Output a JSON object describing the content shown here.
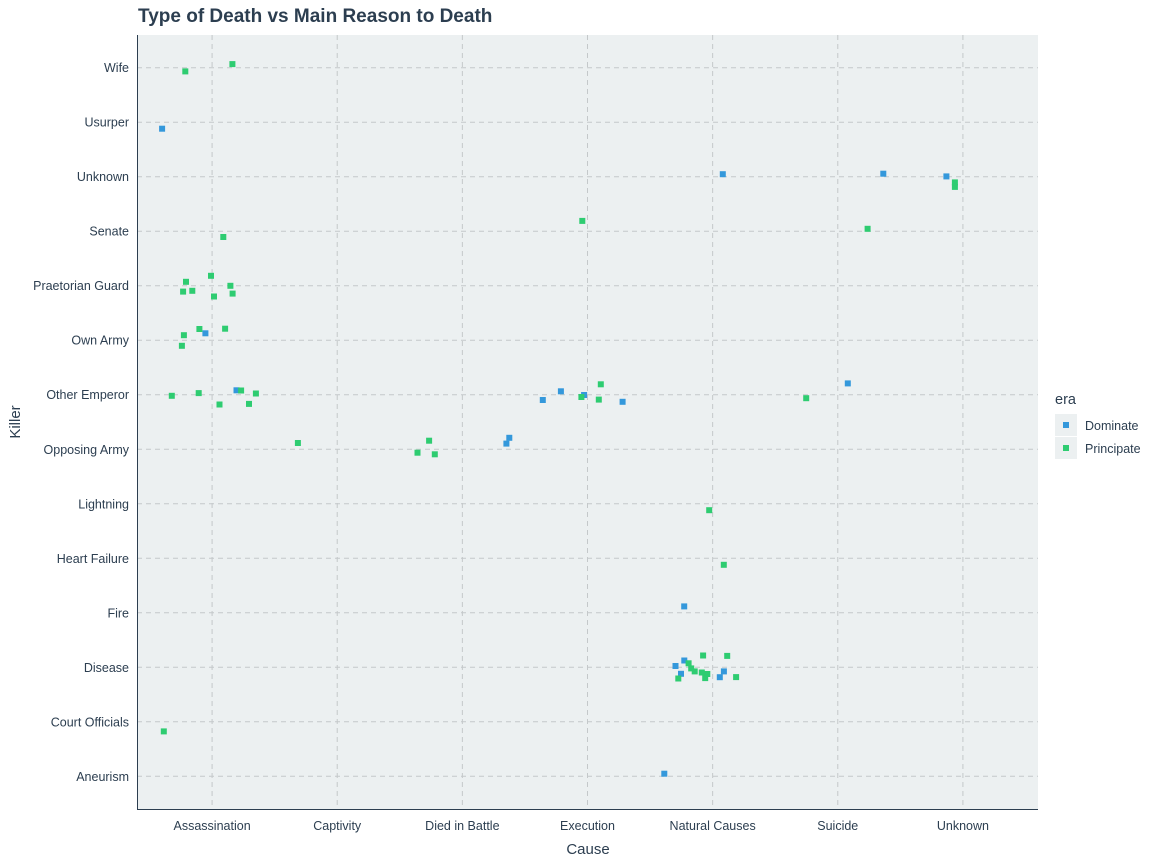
{
  "chart_data": {
    "type": "scatter",
    "title": "Type of Death vs Main Reason to Death",
    "xlabel": "Cause",
    "ylabel": "Killer",
    "x_categories": [
      "Assassination",
      "Captivity",
      "Died in Battle",
      "Execution",
      "Natural Causes",
      "Suicide",
      "Unknown"
    ],
    "y_categories": [
      "Aneurism",
      "Court Officials",
      "Disease",
      "Fire",
      "Heart Failure",
      "Lightning",
      "Opposing Army",
      "Other Emperor",
      "Own Army",
      "Praetorian Guard",
      "Senate",
      "Unknown",
      "Usurper",
      "Wife"
    ],
    "grid": true,
    "jitter": true,
    "legend": {
      "title": "era",
      "position": "right",
      "entries": [
        {
          "name": "Dominate",
          "color": "#3498db"
        },
        {
          "name": "Principate",
          "color": "#2ecc71"
        }
      ]
    },
    "series": [
      {
        "name": "Dominate",
        "color": "#3498db",
        "points": [
          {
            "x": "Assassination",
            "y": "Usurper"
          },
          {
            "x": "Assassination",
            "y": "Own Army"
          },
          {
            "x": "Assassination",
            "y": "Other Emperor"
          },
          {
            "x": "Died in Battle",
            "y": "Opposing Army"
          },
          {
            "x": "Died in Battle",
            "y": "Opposing Army"
          },
          {
            "x": "Execution",
            "y": "Other Emperor"
          },
          {
            "x": "Execution",
            "y": "Other Emperor"
          },
          {
            "x": "Execution",
            "y": "Other Emperor"
          },
          {
            "x": "Execution",
            "y": "Other Emperor"
          },
          {
            "x": "Natural Causes",
            "y": "Unknown"
          },
          {
            "x": "Natural Causes",
            "y": "Fire"
          },
          {
            "x": "Natural Causes",
            "y": "Disease"
          },
          {
            "x": "Natural Causes",
            "y": "Disease"
          },
          {
            "x": "Natural Causes",
            "y": "Disease"
          },
          {
            "x": "Natural Causes",
            "y": "Disease"
          },
          {
            "x": "Natural Causes",
            "y": "Disease"
          },
          {
            "x": "Natural Causes",
            "y": "Aneurism"
          },
          {
            "x": "Suicide",
            "y": "Unknown"
          },
          {
            "x": "Suicide",
            "y": "Other Emperor"
          },
          {
            "x": "Unknown",
            "y": "Unknown"
          }
        ]
      },
      {
        "name": "Principate",
        "color": "#2ecc71",
        "points": [
          {
            "x": "Assassination",
            "y": "Wife"
          },
          {
            "x": "Assassination",
            "y": "Wife"
          },
          {
            "x": "Assassination",
            "y": "Senate"
          },
          {
            "x": "Assassination",
            "y": "Praetorian Guard"
          },
          {
            "x": "Assassination",
            "y": "Praetorian Guard"
          },
          {
            "x": "Assassination",
            "y": "Praetorian Guard"
          },
          {
            "x": "Assassination",
            "y": "Praetorian Guard"
          },
          {
            "x": "Assassination",
            "y": "Praetorian Guard"
          },
          {
            "x": "Assassination",
            "y": "Praetorian Guard"
          },
          {
            "x": "Assassination",
            "y": "Praetorian Guard"
          },
          {
            "x": "Assassination",
            "y": "Own Army"
          },
          {
            "x": "Assassination",
            "y": "Own Army"
          },
          {
            "x": "Assassination",
            "y": "Own Army"
          },
          {
            "x": "Assassination",
            "y": "Own Army"
          },
          {
            "x": "Assassination",
            "y": "Other Emperor"
          },
          {
            "x": "Assassination",
            "y": "Other Emperor"
          },
          {
            "x": "Assassination",
            "y": "Other Emperor"
          },
          {
            "x": "Assassination",
            "y": "Other Emperor"
          },
          {
            "x": "Assassination",
            "y": "Other Emperor"
          },
          {
            "x": "Assassination",
            "y": "Other Emperor"
          },
          {
            "x": "Assassination",
            "y": "Court Officials"
          },
          {
            "x": "Captivity",
            "y": "Opposing Army"
          },
          {
            "x": "Died in Battle",
            "y": "Opposing Army"
          },
          {
            "x": "Died in Battle",
            "y": "Opposing Army"
          },
          {
            "x": "Died in Battle",
            "y": "Opposing Army"
          },
          {
            "x": "Execution",
            "y": "Senate"
          },
          {
            "x": "Execution",
            "y": "Other Emperor"
          },
          {
            "x": "Execution",
            "y": "Other Emperor"
          },
          {
            "x": "Execution",
            "y": "Other Emperor"
          },
          {
            "x": "Natural Causes",
            "y": "Lightning"
          },
          {
            "x": "Natural Causes",
            "y": "Heart Failure"
          },
          {
            "x": "Natural Causes",
            "y": "Disease"
          },
          {
            "x": "Natural Causes",
            "y": "Disease"
          },
          {
            "x": "Natural Causes",
            "y": "Disease"
          },
          {
            "x": "Natural Causes",
            "y": "Disease"
          },
          {
            "x": "Natural Causes",
            "y": "Disease"
          },
          {
            "x": "Natural Causes",
            "y": "Disease"
          },
          {
            "x": "Natural Causes",
            "y": "Disease"
          },
          {
            "x": "Natural Causes",
            "y": "Disease"
          },
          {
            "x": "Natural Causes",
            "y": "Disease"
          },
          {
            "x": "Natural Causes",
            "y": "Disease"
          },
          {
            "x": "Suicide",
            "y": "Senate"
          },
          {
            "x": "Suicide",
            "y": "Other Emperor"
          },
          {
            "x": "Unknown",
            "y": "Unknown"
          },
          {
            "x": "Unknown",
            "y": "Unknown"
          }
        ]
      }
    ]
  }
}
